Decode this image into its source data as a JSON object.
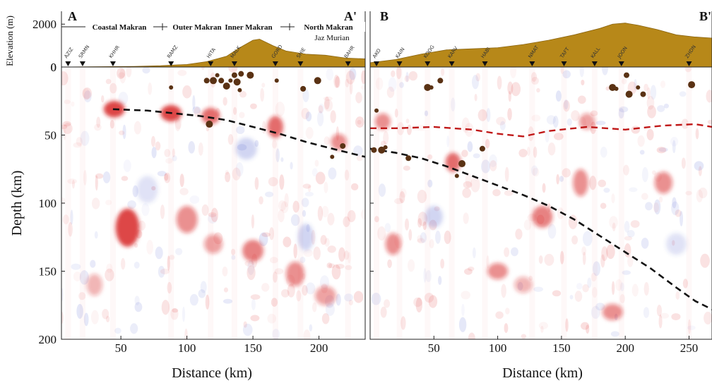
{
  "chart_data": [
    {
      "type": "heatmap",
      "panel_label_left": "A",
      "panel_label_right": "A'",
      "xlabel": "Distance (km)",
      "ylabel": "Depth (km)",
      "elevation_axis_label": "Elevation (m)",
      "xlim": [
        5,
        235
      ],
      "ylim": [
        0,
        200
      ],
      "elevation_ylim": [
        0,
        2600
      ],
      "x_ticks": [
        50,
        100,
        150,
        200
      ],
      "y_ticks": [
        0,
        50,
        100,
        150,
        200
      ],
      "elevation_ticks": [
        0,
        2000
      ],
      "regions": [
        "Coastal Makran",
        "Outer Makran",
        "Inner Makran",
        "North Makran"
      ],
      "region_sublabel": "Jaz Murian",
      "stations": [
        {
          "name": "AZIZ",
          "x": 10
        },
        {
          "name": "SRMN",
          "x": 21
        },
        {
          "name": "KHHR",
          "x": 44
        },
        {
          "name": "RAMZ",
          "x": 88
        },
        {
          "name": "HITA",
          "x": 118
        },
        {
          "name": "MALK",
          "x": 136
        },
        {
          "name": "GORD",
          "x": 167
        },
        {
          "name": "SHIE",
          "x": 186
        },
        {
          "name": "BAHR",
          "x": 222
        }
      ],
      "topography": [
        [
          5,
          0
        ],
        [
          60,
          30
        ],
        [
          80,
          60
        ],
        [
          100,
          120
        ],
        [
          115,
          250
        ],
        [
          130,
          500
        ],
        [
          140,
          900
        ],
        [
          150,
          1250
        ],
        [
          155,
          1300
        ],
        [
          165,
          1000
        ],
        [
          175,
          750
        ],
        [
          190,
          600
        ],
        [
          205,
          550
        ],
        [
          220,
          420
        ],
        [
          235,
          380
        ]
      ],
      "slab_interface": [
        [
          44,
          31
        ],
        [
          70,
          32
        ],
        [
          90,
          34
        ],
        [
          110,
          36
        ],
        [
          130,
          39
        ],
        [
          150,
          44
        ],
        [
          170,
          49
        ],
        [
          190,
          55
        ],
        [
          210,
          60
        ],
        [
          235,
          66
        ]
      ],
      "earthquakes": [
        [
          88,
          15
        ],
        [
          115,
          10
        ],
        [
          120,
          10
        ],
        [
          123,
          6
        ],
        [
          126,
          10
        ],
        [
          130,
          14
        ],
        [
          133,
          10
        ],
        [
          136,
          6
        ],
        [
          138,
          11
        ],
        [
          140,
          17
        ],
        [
          141,
          5
        ],
        [
          148,
          6
        ],
        [
          168,
          10
        ],
        [
          188,
          16
        ],
        [
          199,
          10
        ],
        [
          210,
          66
        ],
        [
          218,
          58
        ],
        [
          117,
          42
        ]
      ],
      "anomalies": [
        {
          "x": 45,
          "y": 31,
          "value": 1.0,
          "rx": 8,
          "ry": 6
        },
        {
          "x": 88,
          "y": 34,
          "value": 1.0,
          "rx": 8,
          "ry": 6
        },
        {
          "x": 118,
          "y": 36,
          "value": 0.8,
          "rx": 7,
          "ry": 6
        },
        {
          "x": 167,
          "y": 44,
          "value": 0.8,
          "rx": 6,
          "ry": 8
        },
        {
          "x": 55,
          "y": 118,
          "value": 1.0,
          "rx": 9,
          "ry": 14
        },
        {
          "x": 100,
          "y": 112,
          "value": 0.6,
          "rx": 8,
          "ry": 10
        },
        {
          "x": 150,
          "y": 135,
          "value": 0.7,
          "rx": 8,
          "ry": 8
        },
        {
          "x": 120,
          "y": 130,
          "value": 0.5,
          "rx": 7,
          "ry": 7
        },
        {
          "x": 182,
          "y": 152,
          "value": 0.6,
          "rx": 7,
          "ry": 9
        },
        {
          "x": 190,
          "y": 125,
          "value": -0.3,
          "rx": 6,
          "ry": 10
        },
        {
          "x": 145,
          "y": 60,
          "value": -0.3,
          "rx": 8,
          "ry": 8
        },
        {
          "x": 70,
          "y": 90,
          "value": -0.2,
          "rx": 8,
          "ry": 10
        },
        {
          "x": 205,
          "y": 168,
          "value": 0.5,
          "rx": 8,
          "ry": 7
        },
        {
          "x": 30,
          "y": 160,
          "value": 0.4,
          "rx": 6,
          "ry": 8
        },
        {
          "x": 215,
          "y": 55,
          "value": 0.6,
          "rx": 6,
          "ry": 6
        }
      ]
    },
    {
      "type": "heatmap",
      "panel_label_left": "B",
      "panel_label_right": "B'",
      "xlabel": "Distance (km)",
      "xlim": [
        0,
        268
      ],
      "ylim": [
        0,
        200
      ],
      "x_ticks": [
        50,
        100,
        150,
        200,
        250
      ],
      "stations": [
        {
          "name": "AKO",
          "x": 5
        },
        {
          "name": "KAIN",
          "x": 23
        },
        {
          "name": "KOOG",
          "x": 45
        },
        {
          "name": "KARV",
          "x": 64
        },
        {
          "name": "HABI",
          "x": 90
        },
        {
          "name": "NMAT",
          "x": 127
        },
        {
          "name": "TAFT",
          "x": 152
        },
        {
          "name": "KALL",
          "x": 176
        },
        {
          "name": "JOON",
          "x": 197
        },
        {
          "name": "ZHDN",
          "x": 250
        }
      ],
      "topography": [
        [
          0,
          200
        ],
        [
          20,
          350
        ],
        [
          40,
          600
        ],
        [
          60,
          800
        ],
        [
          80,
          850
        ],
        [
          100,
          900
        ],
        [
          120,
          1050
        ],
        [
          140,
          1250
        ],
        [
          160,
          1500
        ],
        [
          180,
          1800
        ],
        [
          190,
          2000
        ],
        [
          200,
          2050
        ],
        [
          210,
          1950
        ],
        [
          225,
          1750
        ],
        [
          240,
          1500
        ],
        [
          255,
          1400
        ],
        [
          268,
          1350
        ]
      ],
      "moho": [
        [
          0,
          45
        ],
        [
          20,
          45
        ],
        [
          50,
          44
        ],
        [
          80,
          46
        ],
        [
          100,
          49
        ],
        [
          120,
          51
        ],
        [
          140,
          47
        ],
        [
          170,
          44
        ],
        [
          200,
          46
        ],
        [
          230,
          43
        ],
        [
          255,
          42
        ],
        [
          268,
          44
        ]
      ],
      "slab_interface": [
        [
          0,
          60
        ],
        [
          20,
          63
        ],
        [
          40,
          67
        ],
        [
          60,
          73
        ],
        [
          80,
          80
        ],
        [
          100,
          87
        ],
        [
          120,
          94
        ],
        [
          140,
          102
        ],
        [
          160,
          112
        ],
        [
          180,
          124
        ],
        [
          200,
          136
        ],
        [
          220,
          148
        ],
        [
          240,
          162
        ],
        [
          255,
          172
        ],
        [
          268,
          178
        ]
      ],
      "earthquakes": [
        [
          5,
          32
        ],
        [
          3,
          61
        ],
        [
          9,
          61
        ],
        [
          12,
          59
        ],
        [
          30,
          67
        ],
        [
          45,
          15
        ],
        [
          48,
          15
        ],
        [
          55,
          10
        ],
        [
          72,
          71
        ],
        [
          68,
          80
        ],
        [
          88,
          60
        ],
        [
          190,
          15
        ],
        [
          193,
          16
        ],
        [
          201,
          6
        ],
        [
          203,
          20
        ],
        [
          210,
          15
        ],
        [
          214,
          20
        ],
        [
          252,
          13
        ]
      ],
      "anomalies": [
        {
          "x": 10,
          "y": 40,
          "value": 0.6,
          "rx": 6,
          "ry": 6
        },
        {
          "x": 18,
          "y": 130,
          "value": 0.6,
          "rx": 6,
          "ry": 8
        },
        {
          "x": 65,
          "y": 70,
          "value": 0.8,
          "rx": 6,
          "ry": 7
        },
        {
          "x": 135,
          "y": 110,
          "value": 0.7,
          "rx": 8,
          "ry": 8
        },
        {
          "x": 165,
          "y": 85,
          "value": 0.6,
          "rx": 6,
          "ry": 10
        },
        {
          "x": 230,
          "y": 85,
          "value": 0.6,
          "rx": 7,
          "ry": 8
        },
        {
          "x": 100,
          "y": 150,
          "value": 0.6,
          "rx": 8,
          "ry": 6
        },
        {
          "x": 190,
          "y": 180,
          "value": 0.6,
          "rx": 8,
          "ry": 6
        },
        {
          "x": 50,
          "y": 110,
          "value": -0.3,
          "rx": 7,
          "ry": 8
        },
        {
          "x": 170,
          "y": 40,
          "value": 0.5,
          "rx": 6,
          "ry": 6
        },
        {
          "x": 240,
          "y": 130,
          "value": -0.2,
          "rx": 8,
          "ry": 8
        },
        {
          "x": 120,
          "y": 160,
          "value": 0.4,
          "rx": 7,
          "ry": 6
        }
      ]
    }
  ]
}
